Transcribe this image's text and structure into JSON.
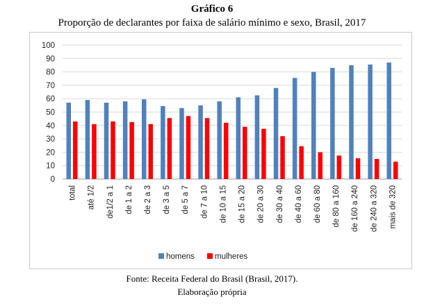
{
  "header": {
    "title": "Gráfico 6",
    "subtitle": "Proporção de declarantes por faixa de salário mínimo e sexo, Brasil, 2017"
  },
  "footer": {
    "source": "Fonte: Receita Federal do Brasil (Brasil, 2017).",
    "credit": "Elaboração própria"
  },
  "chart_data": {
    "type": "bar",
    "title": "",
    "xlabel": "",
    "ylabel": "",
    "ylim": [
      0,
      100
    ],
    "yticks": [
      0,
      10,
      20,
      30,
      40,
      50,
      60,
      70,
      80,
      90,
      100
    ],
    "grid": true,
    "legend_position": "bottom",
    "categories": [
      "total",
      "até 1/2",
      "de1/2 a 1",
      "de 1 a 2",
      "de 2 a 3",
      "de 3 a 5",
      "de 5 a 7",
      "de 7 a 10",
      "de 10 a 15",
      "de 15 a 20",
      "de 20 a 30",
      "de 30 a 40",
      "de 40 a 60",
      "de 60 a 80",
      "de 80 a 160",
      "de 160 a 240",
      "de 240 a 320",
      "mais de 320"
    ],
    "series": [
      {
        "name": "homens",
        "color": "#4f81bd",
        "values": [
          57,
          59,
          57,
          58,
          59.5,
          54.5,
          53,
          55,
          58,
          61,
          62.5,
          68,
          75.5,
          80,
          83,
          85,
          85.5,
          87
        ]
      },
      {
        "name": "mulheres",
        "color": "#ff0000",
        "values": [
          43,
          41,
          43,
          42.5,
          41,
          45.5,
          47,
          45.5,
          42,
          39,
          37.5,
          32,
          24.5,
          20,
          17.5,
          15.5,
          15,
          13
        ]
      }
    ]
  }
}
